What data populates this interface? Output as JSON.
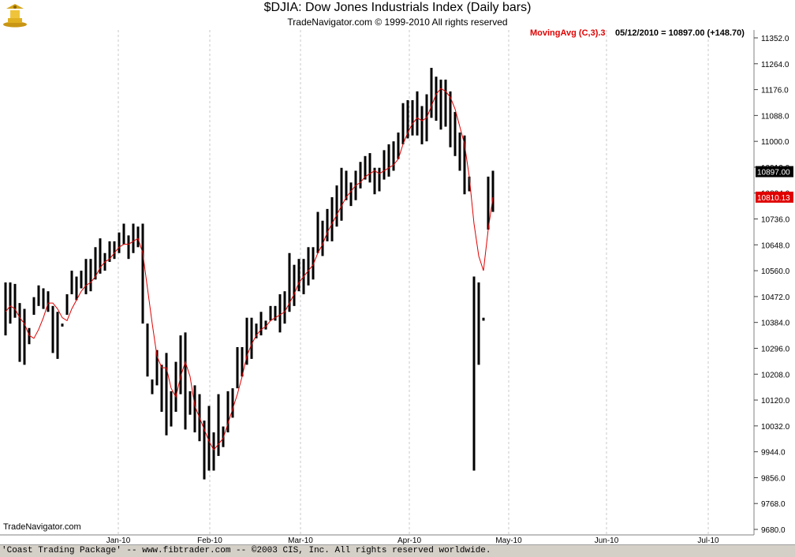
{
  "header": {
    "title": "$DJIA:  Dow Jones Industrials Index  (Daily bars)",
    "subtitle": "TradeNavigator.com © 1999-2010 All rights reserved",
    "study_label": "MovingAvg (C,3).3",
    "study_value": "05/12/2010 = 10897.00 (+148.70)"
  },
  "watermark": "TradeNavigator.com",
  "footer": "'Coast Trading Package' -- www.fibtrader.com -- ©2003 CIS, Inc. All rights reserved worldwide.",
  "colors": {
    "price_bars": "#000000",
    "moving_average": "#e00000",
    "grid": "#c8c8c8",
    "last_price_tag_bg": "#000000",
    "ma_tag_bg": "#e00000"
  },
  "chart_data": {
    "type": "ohlc-bar",
    "title": "$DJIA:  Dow Jones Industrials Index  (Daily bars)",
    "y_axis_side": "right",
    "ylim": [
      9680.0,
      11360.0
    ],
    "y_ticks": [
      "11352.0",
      "11264.0",
      "11176.0",
      "11088.0",
      "11000.0",
      "10912.0",
      "10824.0",
      "10736.0",
      "10648.0",
      "10560.0",
      "10472.0",
      "10384.0",
      "10296.0",
      "10208.0",
      "10120.0",
      "10032.0",
      "9944.0",
      "9856.0",
      "9768.0",
      "9680.0"
    ],
    "x_ticks": [
      "Jan-10",
      "Feb-10",
      "Mar-10",
      "Apr-10",
      "May-10",
      "Jun-10",
      "Jul-10"
    ],
    "grid": true,
    "last_price_label": "10897.00",
    "last_price": 10897.0,
    "ma_label": "10810.13",
    "ma_value": 10810.13,
    "series": [
      {
        "name": "$DJIA",
        "style": "hl-bars",
        "high": [
          10520,
          10520,
          10515,
          10450,
          10430,
          10365,
          10470,
          10510,
          10500,
          10490,
          10440,
          10420,
          10380,
          10480,
          10560,
          10540,
          10560,
          10600,
          10600,
          10640,
          10670,
          10620,
          10660,
          10660,
          10690,
          10720,
          10680,
          10720,
          10710,
          10720,
          10380,
          10190,
          10290,
          10240,
          10280,
          10150,
          10250,
          10340,
          10350,
          10150,
          10170,
          10140,
          10050,
          10100,
          10010,
          10140,
          10030,
          10150,
          10160,
          10300,
          10300,
          10400,
          10400,
          10380,
          10420,
          10390,
          10440,
          10440,
          10480,
          10490,
          10620,
          10580,
          10600,
          10600,
          10640,
          10640,
          10760,
          10730,
          10770,
          10810,
          10850,
          10910,
          10900,
          10860,
          10900,
          10930,
          10950,
          10960,
          10910,
          10910,
          10970,
          10990,
          11000,
          11030,
          11130,
          11140,
          11140,
          11170,
          11120,
          11160,
          11250,
          11220,
          11210,
          11210,
          11170,
          11100,
          11030,
          11020,
          10880,
          10540,
          10520,
          10400,
          10880,
          10900
        ],
        "low": [
          10340,
          10380,
          10400,
          10250,
          10240,
          10310,
          10410,
          10440,
          10430,
          10420,
          10280,
          10260,
          10370,
          10410,
          10480,
          10460,
          10500,
          10480,
          10490,
          10530,
          10550,
          10560,
          10590,
          10600,
          10620,
          10650,
          10600,
          10620,
          10640,
          10380,
          10200,
          10140,
          10170,
          10080,
          10000,
          10030,
          10080,
          10140,
          10020,
          10070,
          10010,
          9980,
          9850,
          9880,
          9880,
          9930,
          9960,
          10010,
          10060,
          10160,
          10200,
          10240,
          10260,
          10330,
          10340,
          10360,
          10390,
          10390,
          10350,
          10380,
          10420,
          10440,
          10490,
          10480,
          10510,
          10530,
          10620,
          10610,
          10660,
          10660,
          10710,
          10730,
          10800,
          10780,
          10800,
          10840,
          10870,
          10860,
          10820,
          10830,
          10870,
          10880,
          10900,
          10940,
          10990,
          11010,
          11020,
          11020,
          10990,
          11000,
          11080,
          11070,
          11040,
          11050,
          10980,
          10950,
          10900,
          10820,
          10830,
          9880,
          10240,
          10390,
          10700,
          10760
        ]
      },
      {
        "name": "MovingAvg (C,3)",
        "values": [
          10420,
          10440,
          10430,
          10400,
          10380,
          10340,
          10330,
          10360,
          10400,
          10450,
          10450,
          10430,
          10400,
          10390,
          10430,
          10460,
          10490,
          10510,
          10520,
          10540,
          10570,
          10590,
          10600,
          10620,
          10640,
          10650,
          10650,
          10660,
          10670,
          10620,
          10500,
          10380,
          10270,
          10230,
          10230,
          10160,
          10130,
          10200,
          10250,
          10200,
          10100,
          10060,
          10020,
          9980,
          9950,
          9970,
          9990,
          10040,
          10090,
          10140,
          10200,
          10270,
          10310,
          10340,
          10360,
          10370,
          10390,
          10400,
          10410,
          10420,
          10450,
          10480,
          10520,
          10540,
          10560,
          10580,
          10620,
          10650,
          10690,
          10720,
          10750,
          10780,
          10810,
          10830,
          10850,
          10860,
          10880,
          10890,
          10900,
          10890,
          10900,
          10910,
          10920,
          10940,
          10990,
          11030,
          11060,
          11080,
          11070,
          11080,
          11120,
          11160,
          11180,
          11170,
          11150,
          11110,
          11050,
          10990,
          10880,
          10720,
          10610,
          10560,
          10700,
          10810
        ]
      }
    ]
  }
}
